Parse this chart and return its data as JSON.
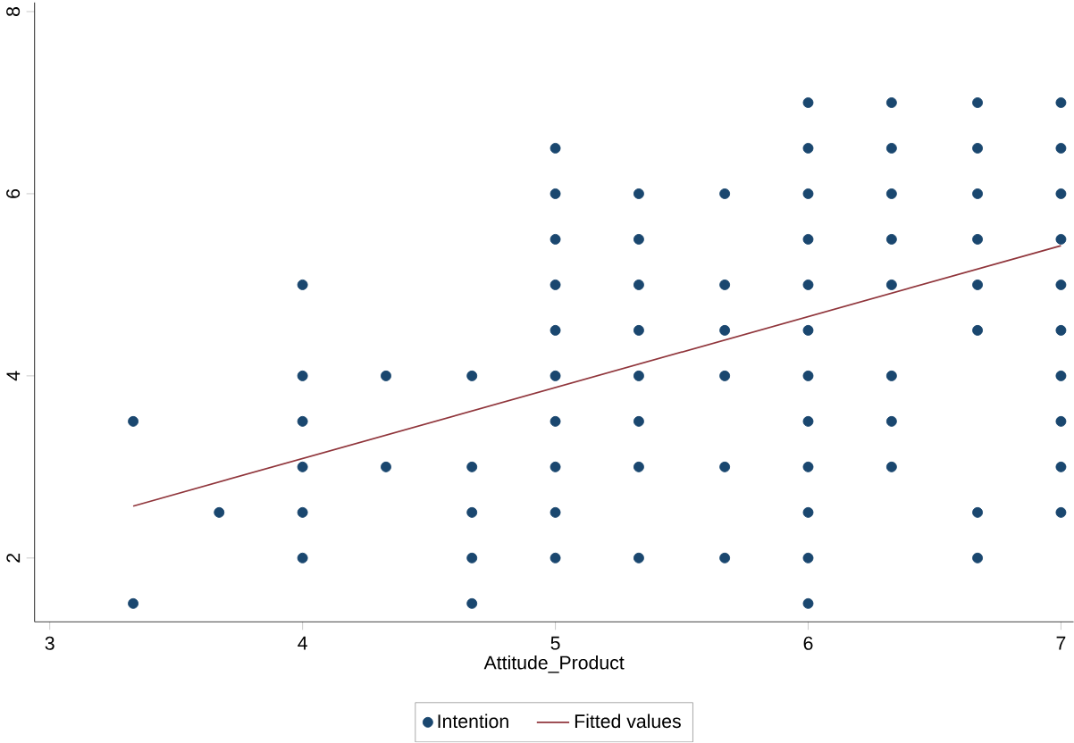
{
  "chart_data": {
    "type": "scatter",
    "xlabel": "Attitude_Product",
    "xlim": [
      2.94,
      7.05
    ],
    "ylim": [
      1.3,
      8.1
    ],
    "xticks": [
      3,
      4,
      5,
      6,
      7
    ],
    "yticks": [
      2,
      4,
      6,
      8
    ],
    "grid": false,
    "legend": "bottom",
    "series": [
      {
        "name": "Intention",
        "marker": "circle",
        "color": "#1a476f",
        "x": [
          3.33,
          3.33,
          3.67,
          4,
          4,
          4,
          4,
          4,
          4,
          4.33,
          4.33,
          4.67,
          4.67,
          4.67,
          4.67,
          4.67,
          5,
          5,
          5,
          5,
          5,
          5,
          5,
          5,
          5,
          5,
          5.33,
          5.33,
          5.33,
          5.33,
          5.33,
          5.33,
          5.33,
          5.33,
          5.67,
          5.67,
          5.67,
          5.67,
          5.67,
          5.67,
          6,
          6,
          6,
          6,
          6,
          6,
          6,
          6,
          6,
          6,
          6,
          6,
          6.33,
          6.33,
          6.33,
          6.33,
          6.33,
          6.33,
          6.33,
          6.33,
          6.67,
          6.67,
          6.67,
          6.67,
          6.67,
          6.67,
          6.67,
          6.67,
          7,
          7,
          7,
          7,
          7,
          7,
          7,
          7,
          7,
          7
        ],
        "values": [
          3.5,
          1.5,
          2.5,
          5,
          4,
          3.5,
          3,
          2.5,
          2,
          4,
          3,
          4,
          3,
          2.5,
          2,
          1.5,
          6.5,
          6,
          5.5,
          5,
          4.5,
          4,
          3.5,
          3,
          2.5,
          2,
          6,
          5.5,
          5,
          4.5,
          4,
          3.5,
          3,
          2,
          6,
          5,
          4.5,
          4,
          3,
          2,
          7,
          6.5,
          6,
          5.5,
          5,
          4.5,
          4,
          3.5,
          3,
          2.5,
          2,
          1.5,
          7,
          6.5,
          6,
          5.5,
          5,
          4,
          3.5,
          3,
          7,
          6.5,
          6,
          5.5,
          5,
          4.5,
          2.5,
          2,
          7,
          6.5,
          6,
          5.5,
          5,
          4.5,
          4,
          3.5,
          3,
          2.5
        ]
      },
      {
        "name": "Fitted values",
        "type": "line",
        "line_style": "solid",
        "color": "#90353b",
        "x": [
          3.33,
          7
        ],
        "values": [
          2.57,
          5.43
        ]
      }
    ]
  }
}
